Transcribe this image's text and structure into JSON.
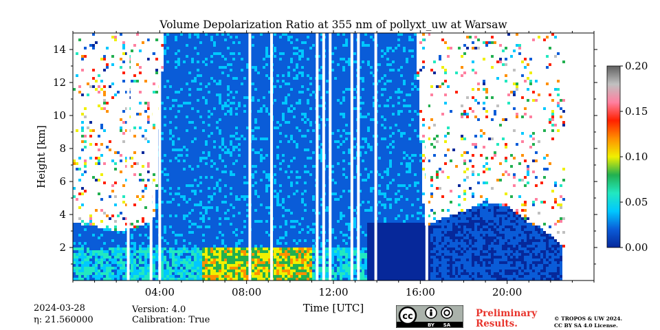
{
  "chart_data": {
    "type": "heatmap",
    "title": "Volume Depolarization Ratio at 355 nm of pollyxt_uw at Warsaw",
    "xlabel": "Time [UTC]",
    "ylabel": "Height [km]",
    "x_range_hours": [
      0,
      24
    ],
    "y_range_km": [
      0,
      15
    ],
    "x_ticks": [
      "04:00",
      "08:00",
      "12:00",
      "16:00",
      "20:00"
    ],
    "x_tick_hours": [
      4,
      8,
      12,
      16,
      20
    ],
    "y_ticks": [
      2,
      4,
      6,
      8,
      10,
      12,
      14
    ],
    "colorbar": {
      "min": 0.0,
      "max": 0.2,
      "ticks": [
        "0.00",
        "0.05",
        "0.10",
        "0.15",
        "0.20"
      ],
      "tick_values": [
        0.0,
        0.05,
        0.1,
        0.15,
        0.2
      ],
      "colors": [
        "#06289a",
        "#0a5cd8",
        "#00c8ff",
        "#22e8c0",
        "#22b050",
        "#f0f000",
        "#ff9000",
        "#ff2000",
        "#ff80a0",
        "#c0c0c0",
        "#606060"
      ]
    },
    "grid": false,
    "data_gaps_utc_hours": [
      2.55,
      3.6,
      4.0,
      8.15,
      9.15,
      11.25,
      11.55,
      11.85,
      12.85,
      13.15,
      13.95,
      16.3
    ],
    "cloud_top_km": [
      [
        0.0,
        3.5
      ],
      [
        1.0,
        3.3
      ],
      [
        2.0,
        3.0
      ],
      [
        3.0,
        3.2
      ],
      [
        3.8,
        3.8
      ],
      [
        4.2,
        15.0
      ],
      [
        15.8,
        15.0
      ],
      [
        16.2,
        3.2
      ],
      [
        17.0,
        3.8
      ],
      [
        18.0,
        4.2
      ],
      [
        19.0,
        4.8
      ],
      [
        20.0,
        4.5
      ],
      [
        21.0,
        3.5
      ],
      [
        22.0,
        2.8
      ],
      [
        22.6,
        2.1
      ]
    ],
    "data_end_hour": 22.7
  },
  "footer": {
    "date": "2024-03-28",
    "eta": "η: 21.560000",
    "version": "Version: 4.0",
    "calibration": "Calibration: True",
    "preliminary_line1": "Preliminary",
    "preliminary_line2": "Results.",
    "copyright_line1": "© TROPOS & UW 2024.",
    "copyright_line2": "CC BY SA 4.0 License.",
    "badge_cc": "cc",
    "badge_by": "BY",
    "badge_sa": "SA"
  }
}
